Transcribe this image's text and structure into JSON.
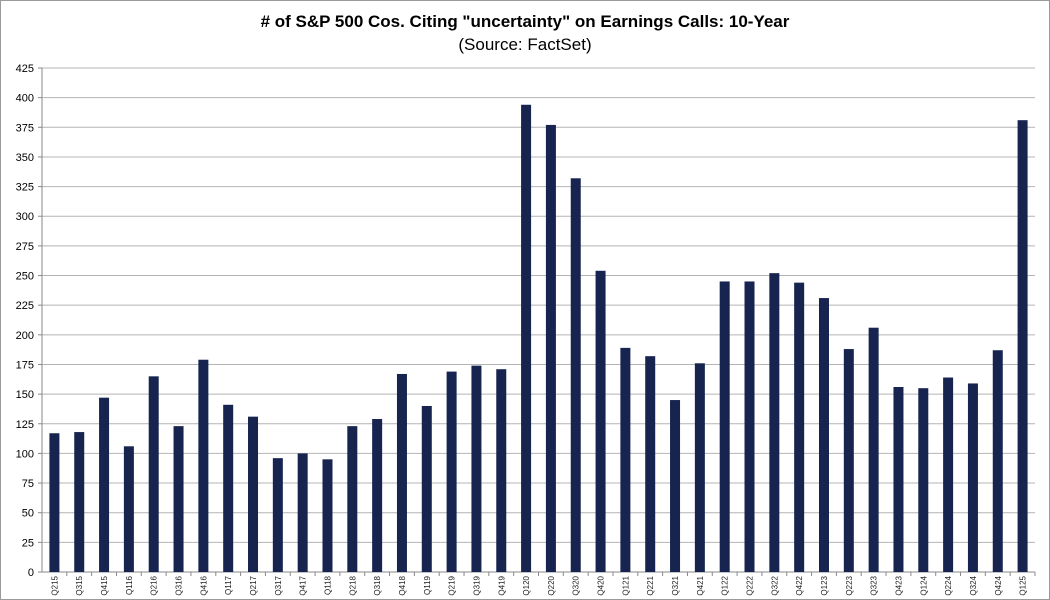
{
  "chart_data": {
    "type": "bar",
    "title": "# of S&P 500 Cos. Citing \"uncertainty\" on Earnings Calls: 10-Year",
    "subtitle": "(Source: FactSet)",
    "xlabel": "",
    "ylabel": "",
    "ylim": [
      0,
      425
    ],
    "yticks": [
      0,
      25,
      50,
      75,
      100,
      125,
      150,
      175,
      200,
      225,
      250,
      275,
      300,
      325,
      350,
      375,
      400,
      425
    ],
    "grid": true,
    "bar_color": "#17244f",
    "categories": [
      "Q215",
      "Q315",
      "Q415",
      "Q116",
      "Q216",
      "Q316",
      "Q416",
      "Q117",
      "Q217",
      "Q317",
      "Q417",
      "Q118",
      "Q218",
      "Q318",
      "Q418",
      "Q119",
      "Q219",
      "Q319",
      "Q419",
      "Q120",
      "Q220",
      "Q320",
      "Q420",
      "Q121",
      "Q221",
      "Q321",
      "Q421",
      "Q122",
      "Q222",
      "Q322",
      "Q422",
      "Q123",
      "Q223",
      "Q323",
      "Q423",
      "Q124",
      "Q224",
      "Q324",
      "Q424",
      "Q125"
    ],
    "values": [
      117,
      118,
      147,
      106,
      165,
      123,
      179,
      141,
      131,
      96,
      100,
      95,
      123,
      129,
      167,
      140,
      169,
      174,
      171,
      394,
      377,
      332,
      254,
      189,
      182,
      145,
      176,
      245,
      245,
      252,
      244,
      231,
      188,
      206,
      156,
      155,
      164,
      159,
      187,
      381
    ]
  }
}
